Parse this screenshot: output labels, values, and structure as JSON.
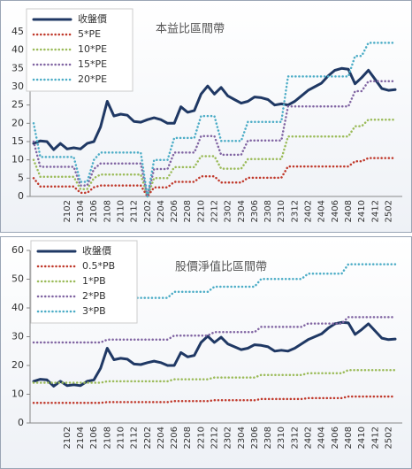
{
  "chart_data": [
    {
      "type": "line",
      "title": "本益比區間帶",
      "legend": "upper left",
      "categories": [
        null,
        null,
        null,
        null,
        null,
        "2102",
        null,
        "2104",
        null,
        "2106",
        null,
        "2108",
        null,
        "2110",
        null,
        "2112",
        null,
        "2202",
        null,
        "2204",
        null,
        "2206",
        null,
        "2208",
        null,
        "2210",
        null,
        "2212",
        null,
        "2302",
        null,
        "2304",
        null,
        "2306",
        null,
        "2308",
        null,
        "2310",
        null,
        "2312",
        null,
        "2402",
        null,
        "2404",
        null,
        "2406",
        null,
        "2408",
        null,
        "2410",
        null,
        "2412",
        null,
        "2502",
        null
      ],
      "ylim": [
        0,
        45
      ],
      "yticks": [
        0,
        5,
        10,
        15,
        20,
        25,
        30,
        35,
        40,
        45
      ],
      "series": [
        {
          "name": "收盤價",
          "color": "#1f3864",
          "width": 3,
          "values": [
            14.5,
            15.2,
            15,
            12.8,
            14.5,
            13,
            13.3,
            13,
            14.5,
            15,
            19,
            26,
            22,
            22.5,
            22.2,
            20.5,
            20.3,
            21,
            21.5,
            21,
            20,
            20,
            24.5,
            23,
            23.5,
            28,
            30.2,
            28,
            29.8,
            27.5,
            26.5,
            25.5,
            26,
            27.2,
            27,
            26.5,
            25,
            25.3,
            25,
            26,
            27.5,
            29,
            30,
            31,
            33,
            34.5,
            35,
            34.8,
            30.8,
            32.5,
            34.5,
            32,
            29.5,
            29,
            29.2
          ]
        },
        {
          "name": "5*PE",
          "color": "#c0392b",
          "width": 2.5,
          "values": [
            5,
            2.7,
            2.7,
            2.7,
            2.7,
            2.7,
            2.7,
            1,
            1,
            2.5,
            3,
            3,
            3,
            3,
            3,
            3,
            3,
            0,
            2.5,
            2.5,
            2.5,
            4,
            4,
            4,
            4,
            5.5,
            5.5,
            5.5,
            3.8,
            3.8,
            3.8,
            3.8,
            5.1,
            5.1,
            5.1,
            5.1,
            5.1,
            5.1,
            8.2,
            8.2,
            8.2,
            8.2,
            8.2,
            8.2,
            8.2,
            8.2,
            8.2,
            8.2,
            9.6,
            9.6,
            10.5,
            10.5,
            10.5,
            10.5,
            10.5
          ]
        },
        {
          "name": "10*PE",
          "color": "#9bbb59",
          "width": 2.5,
          "values": [
            10,
            5.4,
            5.4,
            5.4,
            5.4,
            5.4,
            5.4,
            2,
            2,
            5,
            6,
            6,
            6,
            6,
            6,
            6,
            6,
            0,
            5,
            5,
            5,
            8,
            8,
            8,
            8,
            11,
            11,
            11,
            7.6,
            7.6,
            7.6,
            7.6,
            10.2,
            10.2,
            10.2,
            10.2,
            10.2,
            10.2,
            16.4,
            16.4,
            16.4,
            16.4,
            16.4,
            16.4,
            16.4,
            16.4,
            16.4,
            16.4,
            19.2,
            19.2,
            21,
            21,
            21,
            21,
            21
          ]
        },
        {
          "name": "15*PE",
          "color": "#8064a2",
          "width": 2.5,
          "values": [
            15,
            8.1,
            8.1,
            8.1,
            8.1,
            8.1,
            8.1,
            3,
            3,
            7.5,
            9,
            9,
            9,
            9,
            9,
            9,
            9,
            0,
            7.5,
            7.5,
            7.5,
            12,
            12,
            12,
            12,
            16.5,
            16.5,
            16.5,
            11.4,
            11.4,
            11.4,
            11.4,
            15.3,
            15.3,
            15.3,
            15.3,
            15.3,
            15.3,
            24.6,
            24.6,
            24.6,
            24.6,
            24.6,
            24.6,
            24.6,
            24.6,
            24.6,
            24.6,
            28.8,
            28.8,
            31.5,
            31.5,
            31.5,
            31.5,
            31.5
          ]
        },
        {
          "name": "20*PE",
          "color": "#4bacc6",
          "width": 2.5,
          "values": [
            20,
            10.8,
            10.8,
            10.8,
            10.8,
            10.8,
            10.8,
            4,
            4,
            10,
            12,
            12,
            12,
            12,
            12,
            12,
            12,
            0,
            10,
            10,
            10,
            16,
            16,
            16,
            16,
            22,
            22,
            22,
            15.2,
            15.2,
            15.2,
            15.2,
            20.4,
            20.4,
            20.4,
            20.4,
            20.4,
            20.4,
            32.8,
            32.8,
            32.8,
            32.8,
            32.8,
            32.8,
            32.8,
            32.8,
            32.8,
            32.8,
            38.4,
            38.4,
            42,
            42,
            42,
            42,
            42
          ]
        }
      ]
    },
    {
      "type": "line",
      "title": "股價淨值比區間帶",
      "legend": "upper left",
      "categories": [
        null,
        null,
        null,
        null,
        null,
        "2102",
        null,
        "2104",
        null,
        "2106",
        null,
        "2108",
        null,
        "2110",
        null,
        "2112",
        null,
        "2202",
        null,
        "2204",
        null,
        "2206",
        null,
        "2208",
        null,
        "2210",
        null,
        "2212",
        null,
        "2302",
        null,
        "2304",
        null,
        "2306",
        null,
        "2308",
        null,
        "2310",
        null,
        "2312",
        null,
        "2402",
        null,
        "2404",
        null,
        "2406",
        null,
        "2408",
        null,
        "2410",
        null,
        "2412",
        null,
        "2502",
        null
      ],
      "ylim": [
        0,
        60
      ],
      "yticks": [
        0,
        10,
        20,
        30,
        40,
        50,
        60
      ],
      "series": [
        {
          "name": "收盤價",
          "color": "#1f3864",
          "width": 3,
          "values": [
            14.5,
            15.2,
            15,
            12.8,
            14.5,
            13,
            13.3,
            13,
            14.5,
            15,
            19,
            26,
            22,
            22.5,
            22.2,
            20.5,
            20.3,
            21,
            21.5,
            21,
            20,
            20,
            24.5,
            23,
            23.5,
            28,
            30.2,
            28,
            29.8,
            27.5,
            26.5,
            25.5,
            26,
            27.2,
            27,
            26.5,
            25,
            25.3,
            25,
            26,
            27.5,
            29,
            30,
            31,
            33,
            34.5,
            35,
            34.8,
            30.8,
            32.5,
            34.5,
            32,
            29.5,
            29,
            29.2
          ]
        },
        {
          "name": "0.5*PB",
          "color": "#c0392b",
          "width": 2.5,
          "values": [
            7,
            7,
            7,
            7,
            7,
            7,
            7,
            7,
            7,
            7,
            7,
            7.25,
            7.25,
            7.25,
            7.25,
            7.25,
            7.25,
            7.25,
            7.25,
            7.25,
            7.25,
            7.6,
            7.6,
            7.6,
            7.6,
            7.6,
            7.6,
            7.9,
            7.9,
            7.9,
            7.9,
            7.9,
            7.9,
            7.9,
            8.35,
            8.35,
            8.35,
            8.35,
            8.35,
            8.35,
            8.35,
            8.65,
            8.65,
            8.65,
            8.65,
            8.65,
            8.65,
            9.2,
            9.2,
            9.2,
            9.2,
            9.2,
            9.2,
            9.2,
            9.2
          ]
        },
        {
          "name": "1*PB",
          "color": "#9bbb59",
          "width": 2.5,
          "values": [
            14,
            14,
            14,
            14,
            14,
            14,
            14,
            14,
            14,
            14,
            14,
            14.5,
            14.5,
            14.5,
            14.5,
            14.5,
            14.5,
            14.5,
            14.5,
            14.5,
            14.5,
            15.2,
            15.2,
            15.2,
            15.2,
            15.2,
            15.2,
            15.8,
            15.8,
            15.8,
            15.8,
            15.8,
            15.8,
            15.8,
            16.7,
            16.7,
            16.7,
            16.7,
            16.7,
            16.7,
            16.7,
            17.3,
            17.3,
            17.3,
            17.3,
            17.3,
            17.3,
            18.4,
            18.4,
            18.4,
            18.4,
            18.4,
            18.4,
            18.4,
            18.4
          ]
        },
        {
          "name": "2*PB",
          "color": "#8064a2",
          "width": 2.5,
          "values": [
            28,
            28,
            28,
            28,
            28,
            28,
            28,
            28,
            28,
            28,
            28,
            29,
            29,
            29,
            29,
            29,
            29,
            29,
            29,
            29,
            29,
            30.4,
            30.4,
            30.4,
            30.4,
            30.4,
            30.4,
            31.6,
            31.6,
            31.6,
            31.6,
            31.6,
            31.6,
            31.6,
            33.4,
            33.4,
            33.4,
            33.4,
            33.4,
            33.4,
            33.4,
            34.6,
            34.6,
            34.6,
            34.6,
            34.6,
            34.6,
            36.8,
            36.8,
            36.8,
            36.8,
            36.8,
            36.8,
            36.8,
            36.8
          ]
        },
        {
          "name": "3*PB",
          "color": "#4bacc6",
          "width": 2.5,
          "values": [
            42,
            42,
            42,
            42,
            42,
            42,
            42,
            42,
            42,
            42,
            42,
            43.5,
            43.5,
            43.5,
            43.5,
            43.5,
            43.5,
            43.5,
            43.5,
            43.5,
            43.5,
            45.6,
            45.6,
            45.6,
            45.6,
            45.6,
            45.6,
            47.4,
            47.4,
            47.4,
            47.4,
            47.4,
            47.4,
            47.4,
            50.1,
            50.1,
            50.1,
            50.1,
            50.1,
            50.1,
            50.1,
            51.9,
            51.9,
            51.9,
            51.9,
            51.9,
            51.9,
            55.2,
            55.2,
            55.2,
            55.2,
            55.2,
            55.2,
            55.2,
            55.2
          ]
        }
      ]
    }
  ]
}
